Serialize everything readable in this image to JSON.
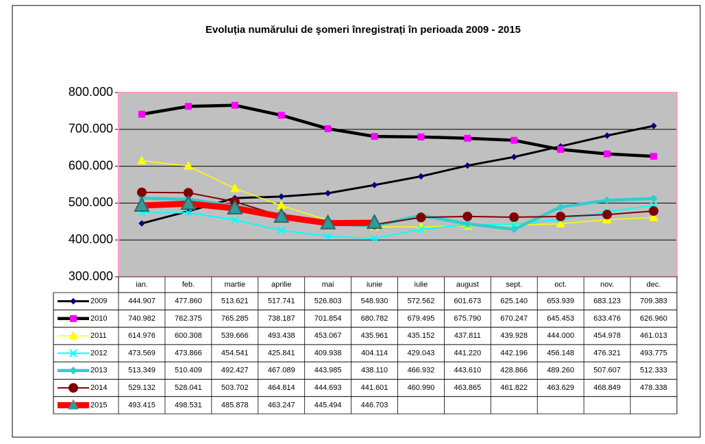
{
  "chart_data": {
    "type": "line",
    "title": "Evoluția numărului de şomeri înregistrați în perioada 2009 - 2015",
    "categories": [
      "ian.",
      "feb.",
      "martie",
      "aprilie",
      "mai",
      "iunie",
      "iulie",
      "august",
      "sept.",
      "oct.",
      "nov.",
      "dec."
    ],
    "ylim": [
      300000,
      800000
    ],
    "yticks": [
      {
        "value": 300000,
        "label": "300.000"
      },
      {
        "value": 400000,
        "label": "400.000"
      },
      {
        "value": 500000,
        "label": "500.000"
      },
      {
        "value": 600000,
        "label": "600.000"
      },
      {
        "value": 700000,
        "label": "700.000"
      },
      {
        "value": 800000,
        "label": "800.000"
      }
    ],
    "grid": true,
    "series": [
      {
        "name": "2009",
        "color": "#000000",
        "marker": "diamond",
        "marker_color": "#000080",
        "values": [
          444907,
          477860,
          513621,
          517741,
          526803,
          548930,
          572562,
          601673,
          625140,
          653939,
          683123,
          709383
        ],
        "value_labels": [
          "444.907",
          "477.860",
          "513.621",
          "517.741",
          "526.803",
          "548.930",
          "572.562",
          "601.673",
          "625.140",
          "653.939",
          "683.123",
          "709.383"
        ]
      },
      {
        "name": "2010",
        "color": "#000000",
        "marker": "square",
        "marker_color": "#ff00ff",
        "values": [
          740982,
          762375,
          765285,
          738187,
          701854,
          680782,
          679495,
          675790,
          670247,
          645453,
          633476,
          626960
        ],
        "value_labels": [
          "740.982",
          "762.375",
          "765.285",
          "738.187",
          "701.854",
          "680.782",
          "679.495",
          "675.790",
          "670.247",
          "645.453",
          "633.476",
          "626.960"
        ]
      },
      {
        "name": "2011",
        "color": "#ffff00",
        "marker": "triangle",
        "marker_color": "#ffff00",
        "values": [
          614976,
          600308,
          539666,
          493438,
          453067,
          435961,
          435152,
          437811,
          439928,
          444000,
          454978,
          461013
        ],
        "value_labels": [
          "614.976",
          "600.308",
          "539.666",
          "493.438",
          "453.067",
          "435.961",
          "435.152",
          "437.811",
          "439.928",
          "444.000",
          "454.978",
          "461.013"
        ]
      },
      {
        "name": "2012",
        "color": "#00ffff",
        "marker": "x",
        "marker_color": "#00ffff",
        "values": [
          473569,
          473866,
          454541,
          425841,
          409938,
          404114,
          429043,
          441220,
          442196,
          456148,
          476321,
          493775
        ],
        "value_labels": [
          "473.569",
          "473.866",
          "454.541",
          "425.841",
          "409.938",
          "404.114",
          "429.043",
          "441.220",
          "442.196",
          "456.148",
          "476.321",
          "493.775"
        ]
      },
      {
        "name": "2013",
        "color": "#33cccc",
        "marker": "diamond",
        "marker_color": "#33cccc",
        "values": [
          513349,
          510409,
          492427,
          467089,
          443985,
          438110,
          466932,
          443610,
          428866,
          489260,
          507607,
          512333
        ],
        "value_labels": [
          "513.349",
          "510.409",
          "492.427",
          "467.089",
          "443.985",
          "438.110",
          "466.932",
          "443.610",
          "428.866",
          "489.260",
          "507.607",
          "512.333"
        ]
      },
      {
        "name": "2014",
        "color": "#800000",
        "marker": "circle",
        "marker_color": "#800000",
        "values": [
          529132,
          528041,
          503702,
          464814,
          444693,
          441601,
          460990,
          463865,
          461822,
          463629,
          468849,
          478338
        ],
        "value_labels": [
          "529.132",
          "528.041",
          "503.702",
          "464.814",
          "444.693",
          "441.601",
          "460.990",
          "463.865",
          "461.822",
          "463.629",
          "468.849",
          "478.338"
        ]
      },
      {
        "name": "2015",
        "color": "#ff0000",
        "marker": "triangle",
        "marker_color": "#339999",
        "values": [
          493415,
          498531,
          485878,
          463247,
          445494,
          446703,
          null,
          null,
          null,
          null,
          null,
          null
        ],
        "value_labels": [
          "493.415",
          "498.531",
          "485.878",
          "463.247",
          "445.494",
          "446.703",
          null,
          null,
          null,
          null,
          null,
          null
        ]
      }
    ]
  }
}
